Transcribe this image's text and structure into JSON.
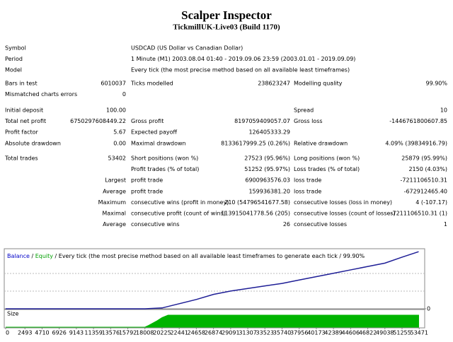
{
  "header": {
    "title": "Scalper Inspector",
    "subtitle": "TickmillUK-Live03 (Build 1170)"
  },
  "report": {
    "sections": [
      [
        {
          "l1": "Symbol",
          "l2": "USDCAD (US Dollar vs Canadian Dollar)"
        },
        {
          "l1": "Period",
          "l2": "1 Minute (M1) 2003.08.04 01:40 - 2019.09.06 23:59 (2003.01.01 - 2019.09.09)"
        },
        {
          "l1": "Model",
          "l2": "Every tick (the most precise method based on all available least timeframes)"
        }
      ],
      [
        {
          "l1": "Bars in test",
          "v1": "6010037",
          "l2": "Ticks modelled",
          "v2": "238623247",
          "l3": "Modelling quality",
          "v3": "99.90%"
        },
        {
          "l1": "Mismatched charts errors",
          "v1": "0"
        }
      ],
      [
        {
          "l1": "Initial deposit",
          "v1": "100.00",
          "l3": "Spread",
          "v3": "10"
        },
        {
          "l1": "Total net profit",
          "v1": "6750297608449.22",
          "l2": "Gross profit",
          "v2": "8197059409057.07",
          "l3": "Gross loss",
          "v3": "-1446761800607.85"
        },
        {
          "l1": "Profit factor",
          "v1": "5.67",
          "l2": "Expected payoff",
          "v2": "126405333.29"
        },
        {
          "l1": "Absolute drawdown",
          "v1": "0.00",
          "l2": "Maximal drawdown",
          "v2": "8133617999.25 (0.26%)",
          "l3": "Relative drawdown",
          "v3": "4.09% (39834916.79)"
        }
      ],
      [
        {
          "l1": "Total trades",
          "v1": "53402",
          "l2": "Short positions (won %)",
          "v2": "27523 (95.96%)",
          "l3": "Long positions (won %)",
          "v3": "25879 (95.99%)"
        },
        {
          "l2": "Profit trades (% of total)",
          "v2": "51252 (95.97%)",
          "l3": "Loss trades (% of total)",
          "v3": "2150 (4.03%)"
        },
        {
          "v1": "Largest",
          "l2": "profit trade",
          "v2": "6900963576.03",
          "l3": "loss trade",
          "v3": "-7211106510.31"
        },
        {
          "v1": "Average",
          "l2": "profit trade",
          "v2": "159936381.20",
          "l3": "loss trade",
          "v3": "-672912465.40"
        },
        {
          "v1": "Maximum",
          "l2": "consecutive wins (profit in money)",
          "v2": "210 (54796541677.58)",
          "l3": "consecutive losses (loss in money)",
          "v3": "4 (-107.17)"
        },
        {
          "v1": "Maximal",
          "l2": "consecutive profit (count of wins)",
          "v2": "113915041778.56 (205)",
          "l3": "consecutive losses (count of losses)",
          "v3": "-7211106510.31 (1)"
        },
        {
          "v1": "Average",
          "l2": "consecutive wins",
          "v2": "26",
          "l3": "consecutive losses",
          "v3": "1"
        }
      ]
    ]
  },
  "chart_data": {
    "type": "line",
    "legend": [
      {
        "text": "Balance",
        "color": "#0000c8"
      },
      {
        "text": " / ",
        "color": "#000000"
      },
      {
        "text": "Equity",
        "color": "#00a000"
      },
      {
        "text": " / Every tick (the most precise method based on all available least timeframes to generate each tick",
        "color": "#000000"
      },
      {
        "text": " / 99.90%",
        "color": "#000000"
      }
    ],
    "series": [
      {
        "name": "Balance",
        "color": "#1e1e96",
        "x": [
          0,
          18008,
          20225,
          22441,
          24658,
          26874,
          29091,
          31307,
          33523,
          35740,
          37956,
          40173,
          42389,
          44606,
          46822,
          49038,
          51255,
          53402
        ],
        "values": [
          0,
          0,
          100000000000.0,
          600000000000.0,
          1100000000000.0,
          1700000000000.0,
          2100000000000.0,
          2400000000000.0,
          2700000000000.0,
          3000000000000.0,
          3400000000000.0,
          3800000000000.0,
          4200000000000.0,
          4600000000000.0,
          5000000000000.0,
          5400000000000.0,
          6100000000000.0,
          6750000000000.0
        ]
      }
    ],
    "xlim": [
      0,
      54000
    ],
    "ylim": [
      0,
      7100000000000.0
    ],
    "yticks": [
      0
    ],
    "xticks": [
      0,
      2493,
      4710,
      6926,
      9143,
      11359,
      13576,
      15792,
      18008,
      20225,
      22441,
      24658,
      26874,
      29091,
      31307,
      33523,
      35740,
      37956,
      40173,
      42389,
      44606,
      46822,
      49038,
      51255,
      53471
    ],
    "size": {
      "label": "Size",
      "color": "#00b400",
      "x": [
        0,
        18008,
        18500,
        19500,
        20225,
        21000,
        53402
      ],
      "values": [
        0,
        0,
        0.15,
        0.5,
        0.8,
        1,
        1
      ],
      "ylim": [
        0,
        1
      ]
    }
  }
}
